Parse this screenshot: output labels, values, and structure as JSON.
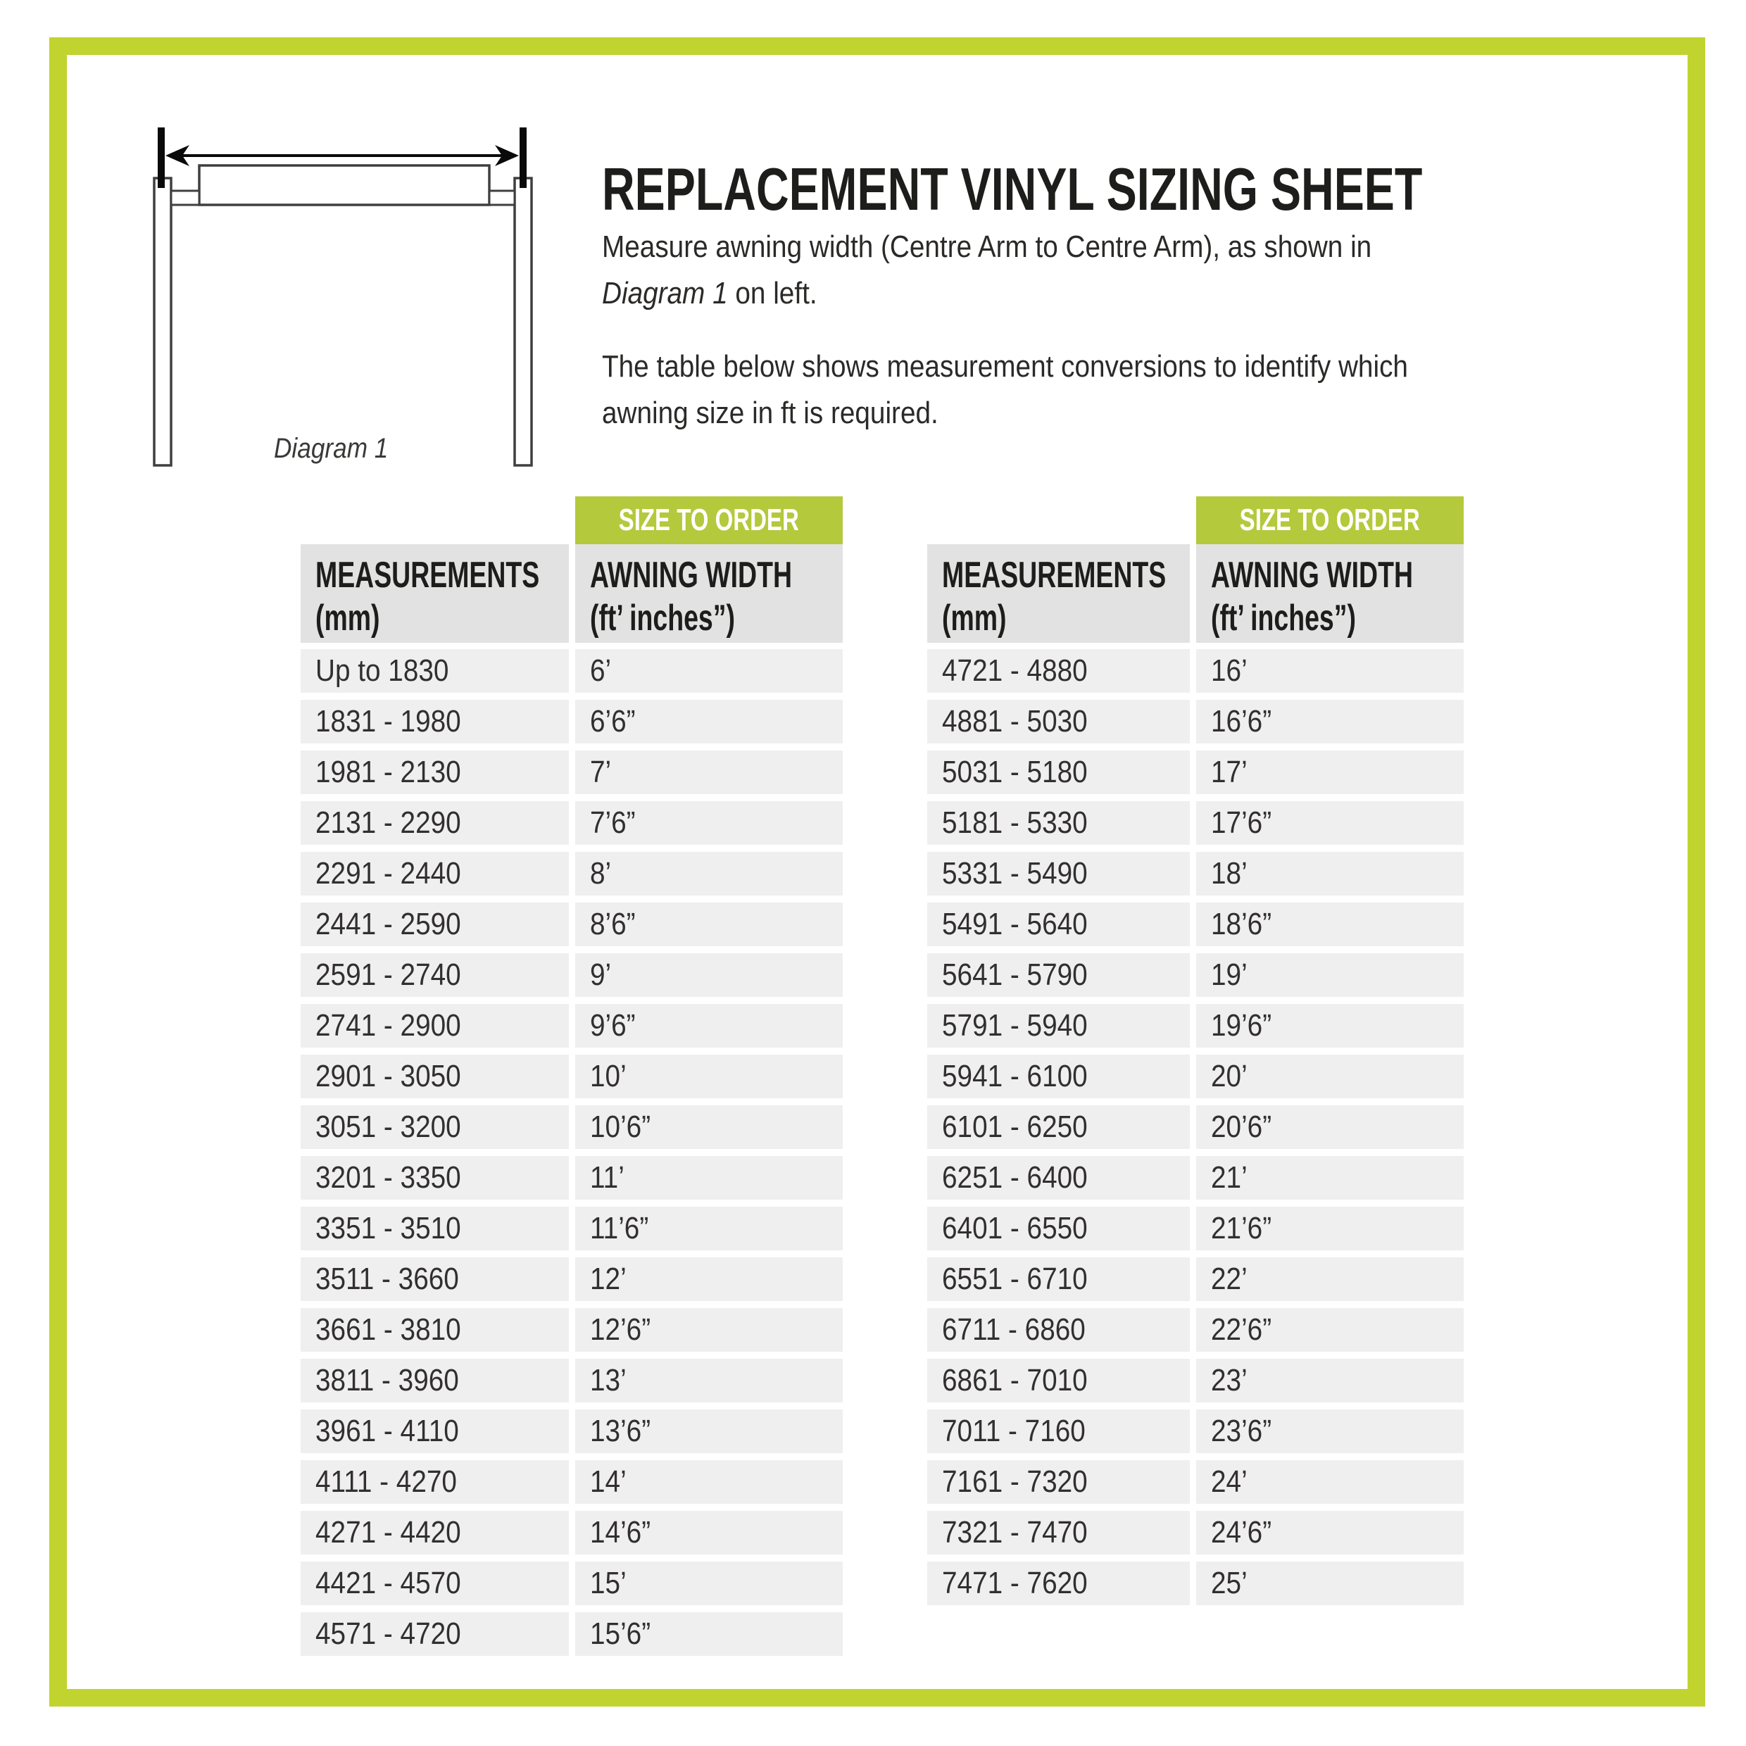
{
  "page": {
    "title": "REPLACEMENT VINYL SIZING SHEET"
  },
  "intro": {
    "p1_line1": "Measure awning width (Centre Arm to Centre Arm), as shown in",
    "p1_italic": "Diagram 1",
    "p1_after": " on left.",
    "p2_line1": "The table below shows measurement conversions to identify which",
    "p2_line2": "awning size in ft is required."
  },
  "diagram": {
    "label": "Diagram 1"
  },
  "colors": {
    "frame_green": "#c1d32f",
    "banner_green": "#b4c93c",
    "header_gray": "#e3e2e2",
    "row_gray": "#f0efef"
  },
  "tables": [
    {
      "banner": "SIZE TO ORDER",
      "col1_header": [
        "MEASUREMENTS",
        "(mm)"
      ],
      "col2_header": [
        "AWNING WIDTH",
        "(ft’ inches”)"
      ],
      "rows": [
        {
          "mm": "Up to 1830",
          "size": "6’"
        },
        {
          "mm": "1831 - 1980",
          "size": "6’6”"
        },
        {
          "mm": "1981 - 2130",
          "size": "7’"
        },
        {
          "mm": "2131 - 2290",
          "size": "7’6”"
        },
        {
          "mm": "2291 - 2440",
          "size": "8’"
        },
        {
          "mm": "2441 - 2590",
          "size": "8’6”"
        },
        {
          "mm": "2591 - 2740",
          "size": "9’"
        },
        {
          "mm": "2741 - 2900",
          "size": "9’6”"
        },
        {
          "mm": "2901 - 3050",
          "size": "10’"
        },
        {
          "mm": "3051 - 3200",
          "size": "10’6”"
        },
        {
          "mm": "3201 - 3350",
          "size": "11’"
        },
        {
          "mm": "3351 - 3510",
          "size": "11’6”"
        },
        {
          "mm": "3511 - 3660",
          "size": "12’"
        },
        {
          "mm": "3661 - 3810",
          "size": "12’6”"
        },
        {
          "mm": "3811 - 3960",
          "size": "13’"
        },
        {
          "mm": "3961 - 4110",
          "size": "13’6”"
        },
        {
          "mm": "4111 - 4270",
          "size": "14’"
        },
        {
          "mm": "4271 - 4420",
          "size": "14’6”"
        },
        {
          "mm": "4421 - 4570",
          "size": "15’"
        },
        {
          "mm": "4571 - 4720",
          "size": "15’6”"
        }
      ]
    },
    {
      "banner": "SIZE TO ORDER",
      "col1_header": [
        "MEASUREMENTS",
        "(mm)"
      ],
      "col2_header": [
        "AWNING WIDTH",
        "(ft’ inches”)"
      ],
      "rows": [
        {
          "mm": "4721 - 4880",
          "size": "16’"
        },
        {
          "mm": "4881 - 5030",
          "size": "16’6”"
        },
        {
          "mm": "5031 - 5180",
          "size": "17’"
        },
        {
          "mm": "5181 - 5330",
          "size": "17’6”"
        },
        {
          "mm": "5331 - 5490",
          "size": "18’"
        },
        {
          "mm": "5491 - 5640",
          "size": "18’6”"
        },
        {
          "mm": "5641 - 5790",
          "size": "19’"
        },
        {
          "mm": "5791 - 5940",
          "size": "19’6”"
        },
        {
          "mm": "5941 - 6100",
          "size": "20’"
        },
        {
          "mm": "6101 - 6250",
          "size": "20’6”"
        },
        {
          "mm": "6251 - 6400",
          "size": "21’"
        },
        {
          "mm": "6401 - 6550",
          "size": "21’6”"
        },
        {
          "mm": "6551 - 6710",
          "size": "22’"
        },
        {
          "mm": "6711 - 6860",
          "size": "22’6”"
        },
        {
          "mm": "6861 - 7010",
          "size": "23’"
        },
        {
          "mm": "7011 - 7160",
          "size": "23’6”"
        },
        {
          "mm": "7161 - 7320",
          "size": "24’"
        },
        {
          "mm": "7321 - 7470",
          "size": "24’6”"
        },
        {
          "mm": "7471 - 7620",
          "size": "25’"
        }
      ]
    }
  ]
}
